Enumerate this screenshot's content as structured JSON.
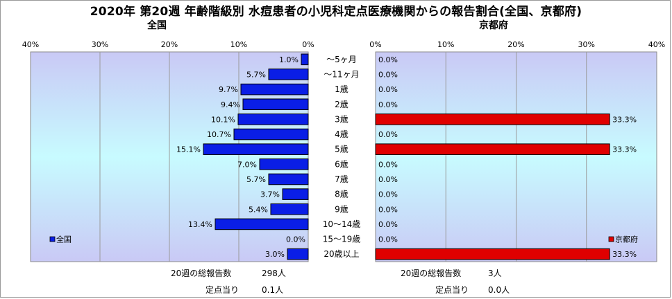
{
  "title": "2020年 第20週 年齢階級別 水痘患者の小児科定点医療機関からの報告割合(全国、京都府)",
  "left_chart_title": "全国",
  "right_chart_title": "京都府",
  "colors": {
    "national_bar": "#0a1ee6",
    "kyoto_bar": "#e00000",
    "bar_border": "#000000",
    "plot_bg_top": "#c9c9f5",
    "plot_bg_mid": "#c8fbff",
    "plot_bg_bottom": "#c9c9f5"
  },
  "chart_data": [
    {
      "type": "bar",
      "orientation": "horizontal",
      "direction": "right-to-left",
      "title": "全国",
      "categories": [
        "～5ヶ月",
        "～11ヶ月",
        "1歳",
        "2歳",
        "3歳",
        "4歳",
        "5歳",
        "6歳",
        "7歳",
        "8歳",
        "9歳",
        "10～14歳",
        "15～19歳",
        "20歳以上"
      ],
      "series": [
        {
          "name": "全国",
          "values": [
            1.0,
            5.7,
            9.7,
            9.4,
            10.1,
            10.7,
            15.1,
            7.0,
            5.7,
            3.7,
            5.4,
            13.4,
            0.0,
            3.0
          ]
        }
      ],
      "value_labels": [
        "1.0%",
        "5.7%",
        "9.7%",
        "9.4%",
        "10.1%",
        "10.7%",
        "15.1%",
        "7.0%",
        "5.7%",
        "3.7%",
        "5.4%",
        "13.4%",
        "0.0%",
        "3.0%"
      ],
      "xlim": [
        0,
        40
      ],
      "tick_labels": [
        "0%",
        "10%",
        "20%",
        "30%",
        "40%"
      ],
      "legend": "bottom-left",
      "grid": true
    },
    {
      "type": "bar",
      "orientation": "horizontal",
      "direction": "left-to-right",
      "title": "京都府",
      "categories": [
        "～5ヶ月",
        "～11ヶ月",
        "1歳",
        "2歳",
        "3歳",
        "4歳",
        "5歳",
        "6歳",
        "7歳",
        "8歳",
        "9歳",
        "10～14歳",
        "15～19歳",
        "20歳以上"
      ],
      "series": [
        {
          "name": "京都府",
          "values": [
            0.0,
            0.0,
            0.0,
            0.0,
            33.3,
            0.0,
            33.3,
            0.0,
            0.0,
            0.0,
            0.0,
            0.0,
            0.0,
            33.3
          ]
        }
      ],
      "value_labels": [
        "0.0%",
        "0.0%",
        "0.0%",
        "0.0%",
        "33.3%",
        "0.0%",
        "33.3%",
        "0.0%",
        "0.0%",
        "0.0%",
        "0.0%",
        "0.0%",
        "0.0%",
        "33.3%"
      ],
      "xlim": [
        0,
        40
      ],
      "tick_labels": [
        "0%",
        "10%",
        "20%",
        "30%",
        "40%"
      ],
      "legend": "bottom-right",
      "grid": true
    }
  ],
  "footer": {
    "left": {
      "total_label": "20週の総報告数",
      "total_value": "298人",
      "per_label": "定点当り",
      "per_value": "0.1人"
    },
    "right": {
      "total_label": "20週の総報告数",
      "total_value": "3人",
      "per_label": "定点当り",
      "per_value": "0.0人"
    }
  }
}
